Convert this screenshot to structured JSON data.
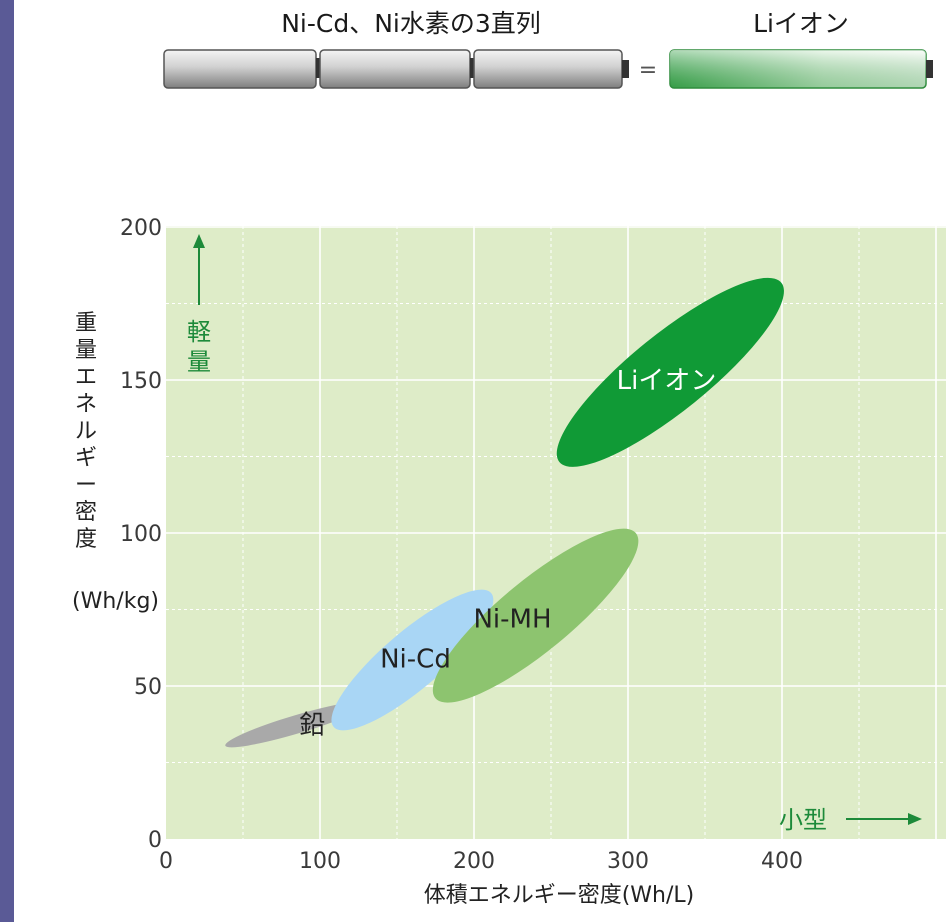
{
  "header": {
    "left_label": "Ni-Cd、Ni水素の3直列",
    "equals": "=",
    "right_label": "Liイオン"
  },
  "chart_data": {
    "type": "scatter",
    "xlabel": "体積エネルギー密度(Wh/L)",
    "ylabel_lines": [
      "重",
      "量",
      "エ",
      "ネ",
      "ル",
      "ギ",
      "ー",
      "密",
      "度"
    ],
    "ylabel_unit": "(Wh/kg)",
    "xlim": [
      0,
      500
    ],
    "ylim": [
      0,
      200
    ],
    "xticks": [
      0,
      100,
      200,
      300,
      400
    ],
    "yticks": [
      0,
      50,
      100,
      150,
      200
    ],
    "grid": true,
    "regions": [
      {
        "name": "鉛",
        "x_range": [
          35,
          135
        ],
        "y_range": [
          30,
          45
        ],
        "color": "#a9a9a9",
        "label_color": "#222222"
      },
      {
        "name": "Ni-Cd",
        "x_range": [
          105,
          215
        ],
        "y_range": [
          35,
          82
        ],
        "color": "#a9d6f5",
        "label_color": "#222222"
      },
      {
        "name": "Ni-MH",
        "x_range": [
          170,
          310
        ],
        "y_range": [
          44,
          102
        ],
        "color": "#8dc46f",
        "label_color": "#222222"
      },
      {
        "name": "Liイオン",
        "x_range": [
          250,
          405
        ],
        "y_range": [
          121,
          184
        ],
        "color": "#109a36",
        "label_color": "#ffffff"
      }
    ],
    "annotations": {
      "y_arrow_label": [
        "軽",
        "量"
      ],
      "x_arrow_label": "小型"
    }
  }
}
